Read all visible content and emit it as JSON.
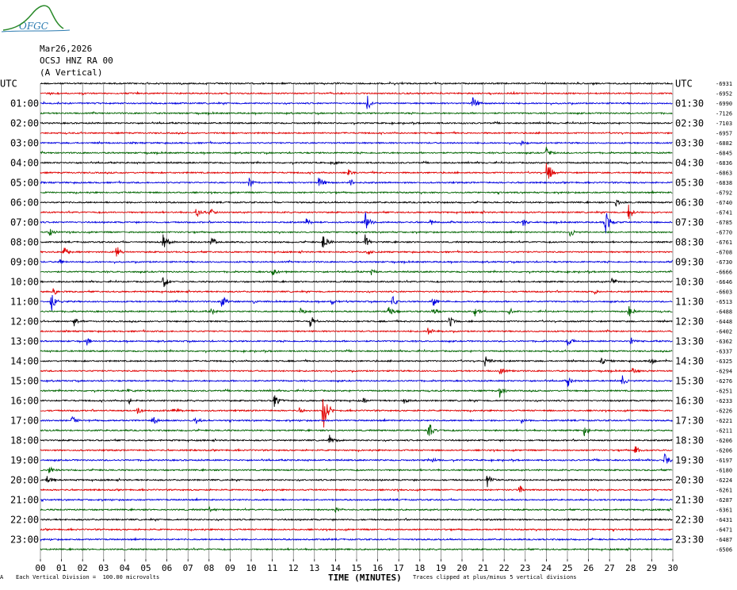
{
  "header": {
    "logo_text": "OFGC",
    "date": "Mar26,2026",
    "station": "OCSJ HNZ RA 00",
    "component": "(A Vertical)"
  },
  "footer": {
    "scale_note": "Each Vertical Division =  100.00 microvolts",
    "x_title": "TIME (MINUTES)",
    "clip_note": "Traces clipped at plus/minus 5 vertical divisions",
    "corner_mark": "A"
  },
  "chart_data": {
    "type": "line",
    "title": "",
    "xlabel": "TIME (MINUTES)",
    "xlim": [
      0,
      30
    ],
    "x_ticks": [
      "00",
      "01",
      "02",
      "03",
      "04",
      "05",
      "06",
      "07",
      "08",
      "09",
      "10",
      "11",
      "12",
      "13",
      "14",
      "15",
      "16",
      "17",
      "18",
      "19",
      "20",
      "21",
      "22",
      "23",
      "24",
      "25",
      "26",
      "27",
      "28",
      "29",
      "30"
    ],
    "grid": true,
    "timezone_label": "UTC",
    "left_labels": [
      "UTC",
      "01:00",
      "02:00",
      "03:00",
      "04:00",
      "05:00",
      "06:00",
      "07:00",
      "08:00",
      "09:00",
      "10:00",
      "11:00",
      "12:00",
      "13:00",
      "14:00",
      "15:00",
      "16:00",
      "17:00",
      "18:00",
      "19:00",
      "20:00",
      "21:00",
      "22:00",
      "23:00"
    ],
    "right_labels": [
      "UTC",
      "01:30",
      "02:30",
      "03:30",
      "04:30",
      "05:30",
      "06:30",
      "07:30",
      "08:30",
      "09:30",
      "10:30",
      "11:30",
      "12:30",
      "13:30",
      "14:30",
      "15:30",
      "16:30",
      "17:30",
      "18:30",
      "19:30",
      "20:30",
      "21:30",
      "22:30",
      "23:30"
    ],
    "trace_colors": [
      "#000000",
      "#e00000",
      "#0000e0",
      "#006400"
    ],
    "trace_offsets": [
      "-6931",
      "-6952",
      "-6990",
      "-7126",
      "-7103",
      "-6957",
      "-6882",
      "-6845",
      "-6836",
      "-6863",
      "-6838",
      "-6792",
      "-6740",
      "-6741",
      "-6785",
      "-6770",
      "-6761",
      "-6708",
      "-6730",
      "-6666",
      "-6646",
      "-6603",
      "-6513",
      "-6488",
      "-6448",
      "-6402",
      "-6362",
      "-6337",
      "-6325",
      "-6294",
      "-6276",
      "-6251",
      "-6233",
      "-6226",
      "-6221",
      "-6211",
      "-6206",
      "-6206",
      "-6197",
      "-6180",
      "-6224",
      "-6261",
      "-6287",
      "-6361",
      "-6431",
      "-6471",
      "-6487",
      "-6506"
    ],
    "trace_count": 48,
    "events": [
      {
        "trace": 2,
        "minute": 15.5,
        "amp": 10
      },
      {
        "trace": 2,
        "minute": 20.5,
        "amp": 12
      },
      {
        "trace": 6,
        "minute": 22.8,
        "amp": 4
      },
      {
        "trace": 7,
        "minute": 24.0,
        "amp": 8
      },
      {
        "trace": 8,
        "minute": 13.9,
        "amp": 3
      },
      {
        "trace": 9,
        "minute": 24.0,
        "amp": 22
      },
      {
        "trace": 9,
        "minute": 14.6,
        "amp": 5
      },
      {
        "trace": 10,
        "minute": 9.9,
        "amp": 10
      },
      {
        "trace": 10,
        "minute": 13.2,
        "amp": 10
      },
      {
        "trace": 10,
        "minute": 14.7,
        "amp": 6
      },
      {
        "trace": 12,
        "minute": 27.3,
        "amp": 7
      },
      {
        "trace": 13,
        "minute": 7.4,
        "amp": 10
      },
      {
        "trace": 13,
        "minute": 8.0,
        "amp": 8
      },
      {
        "trace": 13,
        "minute": 27.9,
        "amp": 14
      },
      {
        "trace": 14,
        "minute": 15.4,
        "amp": 14
      },
      {
        "trace": 14,
        "minute": 12.6,
        "amp": 5
      },
      {
        "trace": 14,
        "minute": 18.5,
        "amp": 4
      },
      {
        "trace": 14,
        "minute": 22.9,
        "amp": 6
      },
      {
        "trace": 14,
        "minute": 26.8,
        "amp": 18
      },
      {
        "trace": 15,
        "minute": 0.4,
        "amp": 7
      },
      {
        "trace": 15,
        "minute": 25.1,
        "amp": 8
      },
      {
        "trace": 16,
        "minute": 5.8,
        "amp": 12
      },
      {
        "trace": 16,
        "minute": 8.1,
        "amp": 8
      },
      {
        "trace": 16,
        "minute": 13.4,
        "amp": 12
      },
      {
        "trace": 16,
        "minute": 15.4,
        "amp": 10
      },
      {
        "trace": 17,
        "minute": 1.1,
        "amp": 10
      },
      {
        "trace": 17,
        "minute": 3.6,
        "amp": 10
      },
      {
        "trace": 17,
        "minute": 15.5,
        "amp": 5
      },
      {
        "trace": 18,
        "minute": 0.9,
        "amp": 5
      },
      {
        "trace": 18,
        "minute": 30.0,
        "amp": 5
      },
      {
        "trace": 19,
        "minute": 11.0,
        "amp": 7
      },
      {
        "trace": 19,
        "minute": 15.7,
        "amp": 4
      },
      {
        "trace": 20,
        "minute": 5.8,
        "amp": 10
      },
      {
        "trace": 20,
        "minute": 27.1,
        "amp": 7
      },
      {
        "trace": 20,
        "minute": 30.0,
        "amp": 5
      },
      {
        "trace": 21,
        "minute": 0.6,
        "amp": 6
      },
      {
        "trace": 21,
        "minute": 26.3,
        "amp": 4
      },
      {
        "trace": 22,
        "minute": 0.5,
        "amp": 14
      },
      {
        "trace": 22,
        "minute": 8.6,
        "amp": 9
      },
      {
        "trace": 22,
        "minute": 10.1,
        "amp": 4
      },
      {
        "trace": 22,
        "minute": 13.8,
        "amp": 6
      },
      {
        "trace": 22,
        "minute": 16.7,
        "amp": 8
      },
      {
        "trace": 22,
        "minute": 18.6,
        "amp": 8
      },
      {
        "trace": 23,
        "minute": 8.1,
        "amp": 7
      },
      {
        "trace": 23,
        "minute": 12.3,
        "amp": 8
      },
      {
        "trace": 23,
        "minute": 16.5,
        "amp": 7
      },
      {
        "trace": 23,
        "minute": 18.6,
        "amp": 8
      },
      {
        "trace": 23,
        "minute": 20.6,
        "amp": 7
      },
      {
        "trace": 23,
        "minute": 22.2,
        "amp": 7
      },
      {
        "trace": 23,
        "minute": 27.9,
        "amp": 8
      },
      {
        "trace": 24,
        "minute": 1.6,
        "amp": 7
      },
      {
        "trace": 24,
        "minute": 12.8,
        "amp": 9
      },
      {
        "trace": 24,
        "minute": 19.4,
        "amp": 9
      },
      {
        "trace": 25,
        "minute": 18.4,
        "amp": 8
      },
      {
        "trace": 26,
        "minute": 2.2,
        "amp": 6
      },
      {
        "trace": 26,
        "minute": 25.0,
        "amp": 7
      },
      {
        "trace": 26,
        "minute": 28.0,
        "amp": 5
      },
      {
        "trace": 28,
        "minute": 21.1,
        "amp": 9
      },
      {
        "trace": 28,
        "minute": 26.6,
        "amp": 5
      },
      {
        "trace": 28,
        "minute": 28.9,
        "amp": 7
      },
      {
        "trace": 29,
        "minute": 21.8,
        "amp": 6
      },
      {
        "trace": 29,
        "minute": 28.1,
        "amp": 6
      },
      {
        "trace": 30,
        "minute": 25.0,
        "amp": 10
      },
      {
        "trace": 30,
        "minute": 27.6,
        "amp": 8
      },
      {
        "trace": 31,
        "minute": 21.8,
        "amp": 10
      },
      {
        "trace": 31,
        "minute": 4.1,
        "amp": 4
      },
      {
        "trace": 32,
        "minute": 4.2,
        "amp": 5
      },
      {
        "trace": 32,
        "minute": 11.1,
        "amp": 12
      },
      {
        "trace": 32,
        "minute": 15.3,
        "amp": 5
      },
      {
        "trace": 32,
        "minute": 17.2,
        "amp": 6
      },
      {
        "trace": 33,
        "minute": 13.4,
        "amp": 28
      },
      {
        "trace": 33,
        "minute": 4.6,
        "amp": 6
      },
      {
        "trace": 33,
        "minute": 6.3,
        "amp": 5
      },
      {
        "trace": 33,
        "minute": 12.3,
        "amp": 5
      },
      {
        "trace": 34,
        "minute": 1.5,
        "amp": 8
      },
      {
        "trace": 34,
        "minute": 5.3,
        "amp": 8
      },
      {
        "trace": 34,
        "minute": 7.3,
        "amp": 8
      },
      {
        "trace": 34,
        "minute": 22.8,
        "amp": 5
      },
      {
        "trace": 34,
        "minute": 30.0,
        "amp": 7
      },
      {
        "trace": 35,
        "minute": 18.4,
        "amp": 14
      },
      {
        "trace": 35,
        "minute": 25.8,
        "amp": 10
      },
      {
        "trace": 36,
        "minute": 13.7,
        "amp": 8
      },
      {
        "trace": 37,
        "minute": 28.2,
        "amp": 7
      },
      {
        "trace": 38,
        "minute": 18.6,
        "amp": 4
      },
      {
        "trace": 38,
        "minute": 29.6,
        "amp": 10
      },
      {
        "trace": 39,
        "minute": 0.4,
        "amp": 5
      },
      {
        "trace": 40,
        "minute": 0.3,
        "amp": 8
      },
      {
        "trace": 40,
        "minute": 21.2,
        "amp": 10
      },
      {
        "trace": 41,
        "minute": 22.7,
        "amp": 8
      },
      {
        "trace": 43,
        "minute": 8.0,
        "amp": 4
      },
      {
        "trace": 43,
        "minute": 14.0,
        "amp": 6
      }
    ]
  }
}
